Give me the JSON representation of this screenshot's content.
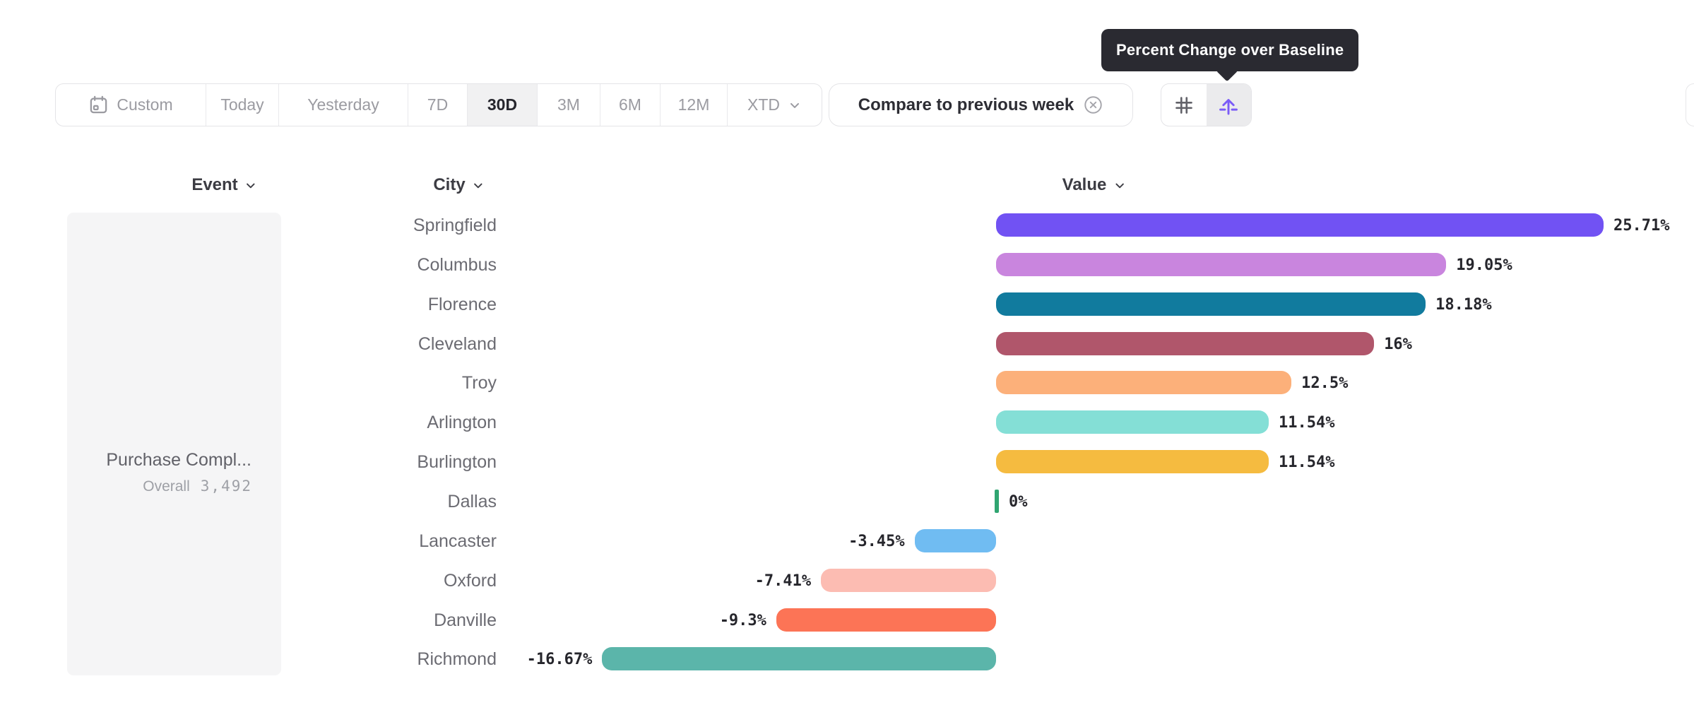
{
  "tooltip": {
    "text": "Percent Change over Baseline"
  },
  "toolbar": {
    "ranges": [
      {
        "label": "Custom",
        "icon": "calendar-icon",
        "selected": false
      },
      {
        "label": "Today",
        "selected": false
      },
      {
        "label": "Yesterday",
        "selected": false
      },
      {
        "label": "7D",
        "selected": false
      },
      {
        "label": "30D",
        "selected": true
      },
      {
        "label": "3M",
        "selected": false
      },
      {
        "label": "6M",
        "selected": false
      },
      {
        "label": "12M",
        "selected": false
      },
      {
        "label": "XTD",
        "selected": false,
        "has_dropdown": true
      }
    ],
    "compare": {
      "label": "Compare to previous week",
      "close_icon": "circle-x-icon"
    },
    "view_toggles": [
      {
        "icon": "grid-icon",
        "selected": false
      },
      {
        "icon": "baseline-arrow-icon",
        "selected": true
      }
    ]
  },
  "columns": [
    {
      "label": "Event",
      "sortable": true
    },
    {
      "label": "City",
      "sortable": true
    },
    {
      "label": "Value",
      "sortable": true
    }
  ],
  "event_card": {
    "title": "Purchase Compl...",
    "overall_label": "Overall",
    "overall_value": "3,492"
  },
  "chart_data": {
    "type": "bar",
    "orientation": "horizontal",
    "title": "Percent Change over Baseline",
    "unit": "%",
    "baseline": 0,
    "xlim": [
      -16.67,
      25.71
    ],
    "grid": false,
    "categories": [
      "Springfield",
      "Columbus",
      "Florence",
      "Cleveland",
      "Troy",
      "Arlington",
      "Burlington",
      "Dallas",
      "Lancaster",
      "Oxford",
      "Danville",
      "Richmond"
    ],
    "values": [
      25.71,
      19.05,
      18.18,
      16,
      12.5,
      11.54,
      11.54,
      0,
      -3.45,
      -7.41,
      -9.3,
      -16.67
    ],
    "value_labels": [
      "25.71%",
      "19.05%",
      "18.18%",
      "16%",
      "12.5%",
      "11.54%",
      "11.54%",
      "0%",
      "-3.45%",
      "-7.41%",
      "-9.3%",
      "-16.67%"
    ],
    "bar_colors": [
      "#7152f3",
      "#c985de",
      "#117b9e",
      "#b0566b",
      "#fcb07a",
      "#84dfd6",
      "#f5bb40",
      "#30a571",
      "#70bcf2",
      "#fcbcb2",
      "#fc7456",
      "#5bb5aa"
    ]
  },
  "colors": {
    "accent_purple": "#7b5cf7",
    "tooltip_bg": "#2a2a31",
    "border": "#e4e4e7",
    "selected_segment_bg": "#f1f1f2",
    "muted_text": "#9b9ba1",
    "dark_text": "#26262d",
    "card_bg": "#f5f5f6",
    "zero_tick_green": "#30a571"
  }
}
